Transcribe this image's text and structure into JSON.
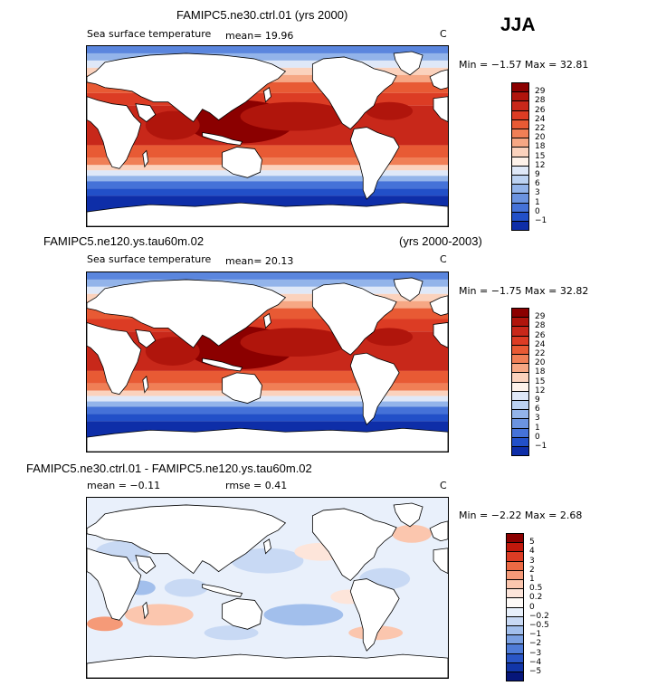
{
  "season": "JJA",
  "panels": [
    {
      "title_left": "FAMIPC5.ne30.ctrl.01 (yrs 2000)",
      "title_right": "",
      "subtitle_left": "Sea surface temperature",
      "mean_text": "mean=   19.96",
      "units": "C",
      "minmax": "Min =   −1.57  Max =   32.81",
      "colorbar": {
        "labels": [
          "29",
          "28",
          "26",
          "24",
          "22",
          "20",
          "18",
          "15",
          "12",
          "9",
          "6",
          "3",
          "1",
          "0",
          "−1"
        ],
        "colors": [
          "#8b0000",
          "#b0150c",
          "#c8281a",
          "#dc3c24",
          "#e85a34",
          "#f07f56",
          "#f6a784",
          "#fbd2bd",
          "#fef2ea",
          "#dfe8f8",
          "#bcd2f2",
          "#93b4ea",
          "#6b93e0",
          "#4572d8",
          "#2250c8",
          "#0e2ea8"
        ]
      },
      "map_style": "sst"
    },
    {
      "title_left": "FAMIPC5.ne120.ys.tau60m.02",
      "title_right": "(yrs 2000-2003)",
      "subtitle_left": "Sea surface temperature",
      "mean_text": "mean=   20.13",
      "units": "C",
      "minmax": "Min =   −1.75  Max =   32.82",
      "colorbar": {
        "labels": [
          "29",
          "28",
          "26",
          "24",
          "22",
          "20",
          "18",
          "15",
          "12",
          "9",
          "6",
          "3",
          "1",
          "0",
          "−1"
        ],
        "colors": [
          "#8b0000",
          "#b0150c",
          "#c8281a",
          "#dc3c24",
          "#e85a34",
          "#f07f56",
          "#f6a784",
          "#fbd2bd",
          "#fef2ea",
          "#dfe8f8",
          "#bcd2f2",
          "#93b4ea",
          "#6b93e0",
          "#4572d8",
          "#2250c8",
          "#0e2ea8"
        ]
      },
      "map_style": "sst"
    },
    {
      "title_left": "FAMIPC5.ne30.ctrl.01 - FAMIPC5.ne120.ys.tau60m.02",
      "title_right": "",
      "subtitle_left": "mean =   −0.11",
      "mean_text": "rmse =    0.41",
      "units": "C",
      "minmax": "Min =   −2.22  Max =    2.68",
      "colorbar": {
        "labels": [
          "5",
          "4",
          "3",
          "2",
          "1",
          "0.5",
          "0.2",
          "0",
          "−0.2",
          "−0.5",
          "−1",
          "−2",
          "−3",
          "−4",
          "−5"
        ],
        "colors": [
          "#8b0000",
          "#c0180c",
          "#dc3c24",
          "#ec6a44",
          "#f59a78",
          "#fbc6ae",
          "#fde5da",
          "#fefaf7",
          "#e8f0fb",
          "#c8d9f4",
          "#a2bfec",
          "#7aa0e2",
          "#4f7cd8",
          "#2a56c6",
          "#1236a8",
          "#06167a"
        ]
      },
      "map_style": "diff"
    }
  ]
}
